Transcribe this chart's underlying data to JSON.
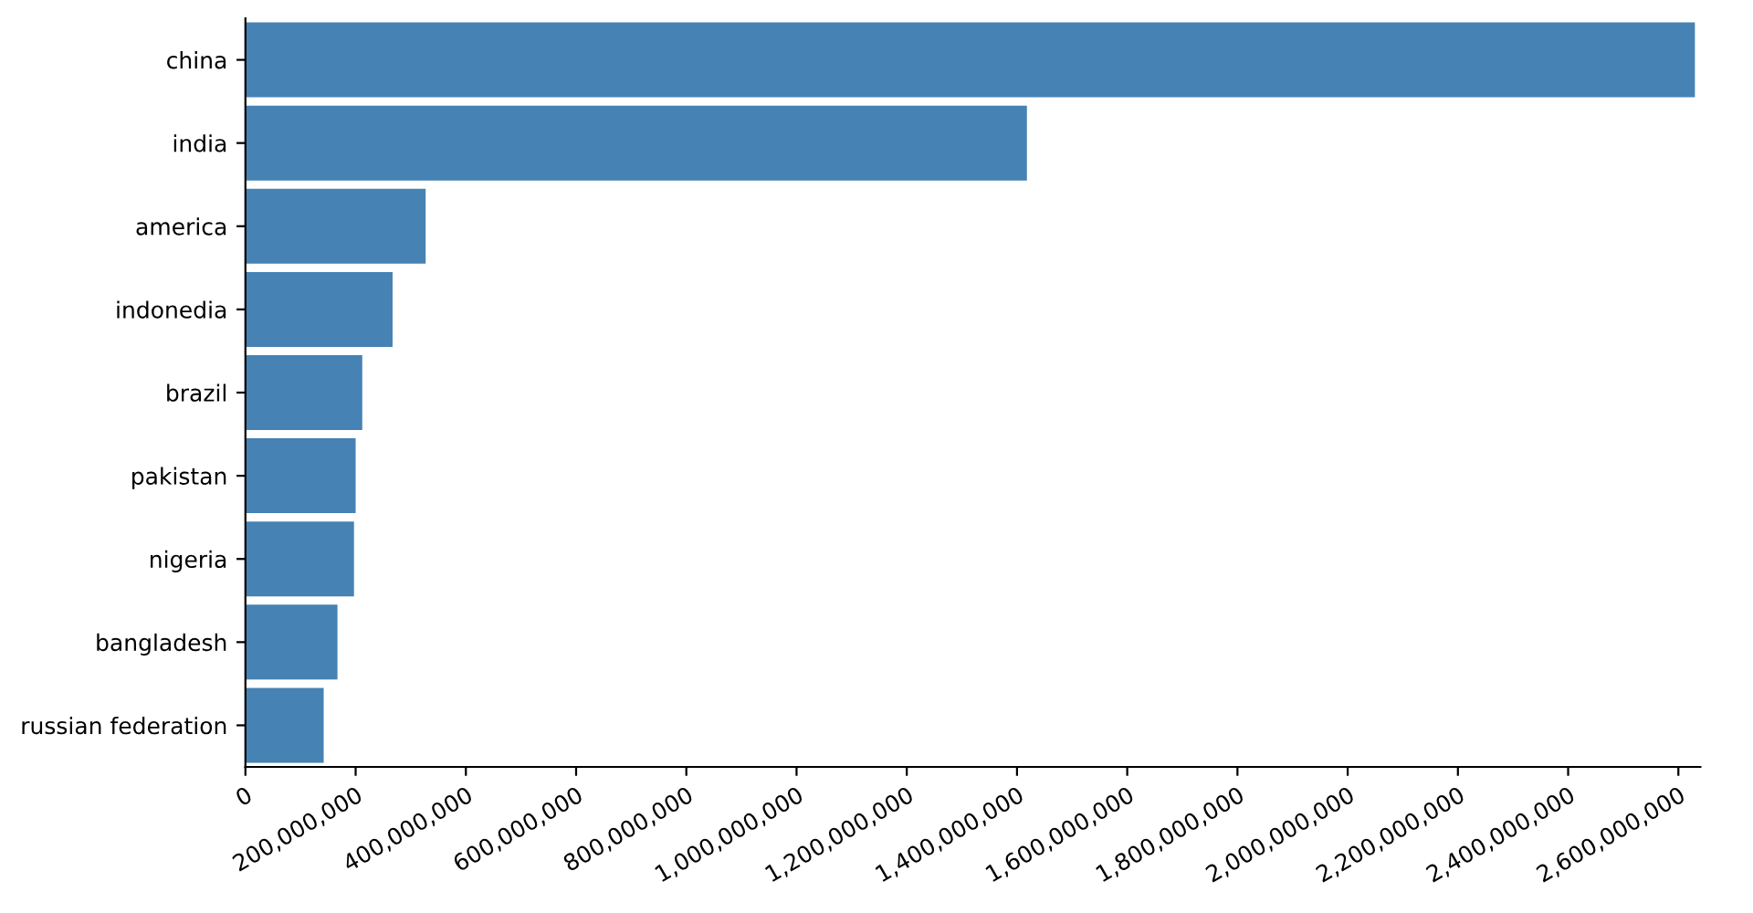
{
  "chart_data": {
    "type": "bar",
    "orientation": "horizontal",
    "categories": [
      "china",
      "india",
      "america",
      "indonedia",
      "brazil",
      "pakistan",
      "nigeria",
      "bangladesh",
      "russian federation"
    ],
    "values": [
      2630000000,
      1418000000,
      327000000,
      267000000,
      212000000,
      200000000,
      197000000,
      167000000,
      142000000
    ],
    "color": "#4682b4",
    "xlim": [
      0,
      2640000000
    ],
    "xticks": [
      {
        "value": 0,
        "label": "0"
      },
      {
        "value": 200000000,
        "label": "200,000,000"
      },
      {
        "value": 400000000,
        "label": "400,000,000"
      },
      {
        "value": 600000000,
        "label": "600,000,000"
      },
      {
        "value": 800000000,
        "label": "800,000,000"
      },
      {
        "value": 1000000000,
        "label": "1,000,000,000"
      },
      {
        "value": 1200000000,
        "label": "1,200,000,000"
      },
      {
        "value": 1400000000,
        "label": "1,400,000,000"
      },
      {
        "value": 1600000000,
        "label": "1,600,000,000"
      },
      {
        "value": 1800000000,
        "label": "1,800,000,000"
      },
      {
        "value": 2000000000,
        "label": "2,000,000,000"
      },
      {
        "value": 2200000000,
        "label": "2,200,000,000"
      },
      {
        "value": 2400000000,
        "label": "2,400,000,000"
      },
      {
        "value": 2600000000,
        "label": "2,600,000,000"
      }
    ],
    "grid": false
  }
}
